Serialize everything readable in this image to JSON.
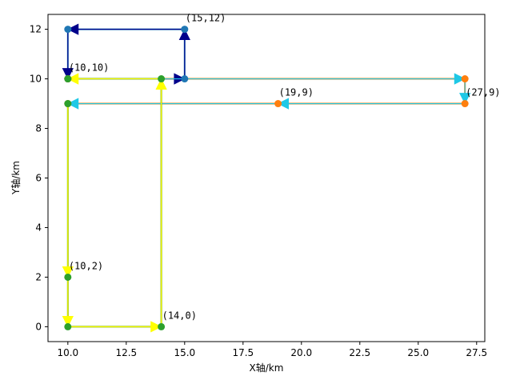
{
  "chart_data": {
    "type": "line",
    "title": "",
    "xlabel": "X轴/km",
    "ylabel": "Y轴/km",
    "xlim": [
      9.15,
      27.85
    ],
    "ylim": [
      -0.6,
      12.6
    ],
    "xticks": [
      10.0,
      12.5,
      15.0,
      17.5,
      20.0,
      22.5,
      25.0,
      27.5
    ],
    "xtick_labels": [
      "10.0",
      "12.5",
      "15.0",
      "17.5",
      "20.0",
      "22.5",
      "25.0",
      "27.5"
    ],
    "yticks": [
      0,
      2,
      4,
      6,
      8,
      10,
      12
    ],
    "ytick_labels": [
      "0",
      "2",
      "4",
      "6",
      "8",
      "10",
      "12"
    ],
    "grid": false,
    "series": [
      {
        "line_color": "#1f77b4",
        "marker_color": "#1f77b4",
        "arrow_color": "#00008b",
        "points": [
          [
            10,
            10
          ],
          [
            15,
            10
          ],
          [
            15,
            12
          ],
          [
            10,
            12
          ],
          [
            10,
            10
          ]
        ]
      },
      {
        "line_color": "#ff7f0e",
        "marker_color": "#ff7f0e",
        "arrow_color": "#1ec8e6",
        "points": [
          [
            10,
            10
          ],
          [
            27,
            10
          ],
          [
            27,
            9
          ],
          [
            19,
            9
          ],
          [
            10,
            9
          ]
        ]
      },
      {
        "line_color": "#6fa800",
        "marker_color": "#2ca02c",
        "arrow_color": "#ffff00",
        "points": [
          [
            10,
            9
          ],
          [
            10,
            2
          ],
          [
            10,
            0
          ],
          [
            14,
            0
          ],
          [
            14,
            10
          ],
          [
            10,
            10
          ]
        ]
      }
    ],
    "annotations": [
      {
        "text": "(15,12)",
        "x": 15,
        "y": 12
      },
      {
        "text": "(10,10)",
        "x": 10,
        "y": 10
      },
      {
        "text": "(19,9)",
        "x": 19,
        "y": 9
      },
      {
        "text": "(27,9)",
        "x": 27,
        "y": 9
      },
      {
        "text": "(10,2)",
        "x": 10,
        "y": 2
      },
      {
        "text": "(14,0)",
        "x": 14,
        "y": 0
      }
    ]
  }
}
